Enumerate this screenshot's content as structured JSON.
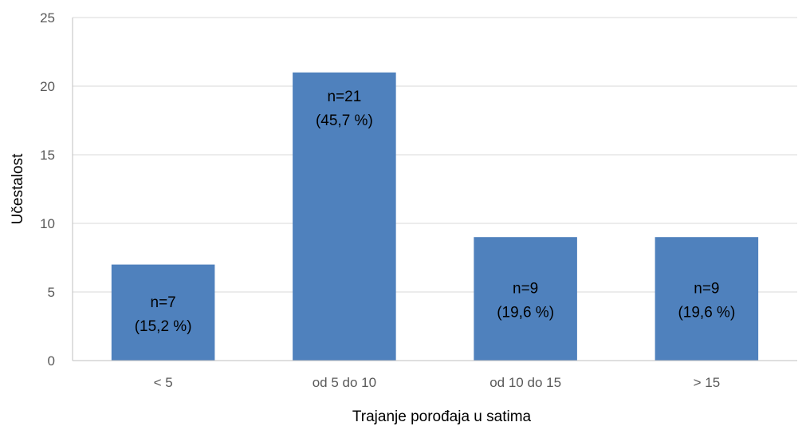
{
  "chart_data": {
    "type": "bar",
    "categories": [
      "< 5",
      "od 5 do 10",
      "od 10 do 15",
      "> 15"
    ],
    "values": [
      7,
      21,
      9,
      9
    ],
    "data_labels": [
      [
        "n=7",
        "(15,2 %)"
      ],
      [
        "n=21",
        "(45,7 %)"
      ],
      [
        "n=9",
        "(19,6 %)"
      ],
      [
        "n=9",
        "(19,6 %)"
      ]
    ],
    "xlabel": "Trajanje porođaja u satima",
    "ylabel": "Učestalost",
    "ylim": [
      0,
      25
    ],
    "yticks": [
      0,
      5,
      10,
      15,
      20,
      25
    ],
    "grid": true,
    "colors": {
      "bar": "#4F81BD",
      "grid": "#D9D9D9",
      "axis": "#BFBFBF"
    }
  }
}
